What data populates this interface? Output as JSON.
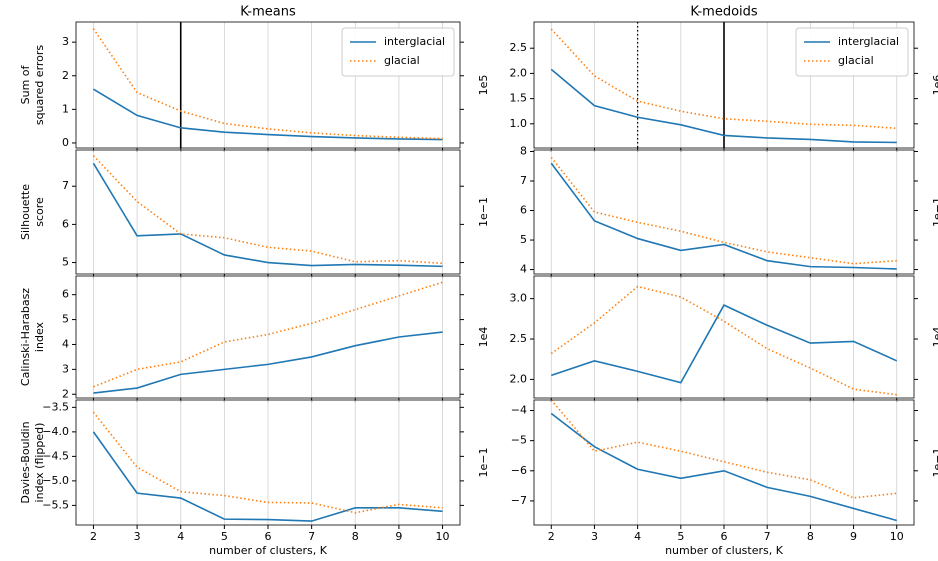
{
  "chart_data": [
    {
      "type": "line",
      "title": "K-means",
      "ylabel": [
        "Sum of",
        "squared errors"
      ],
      "scale_label": "1e5",
      "x": [
        2,
        3,
        4,
        5,
        6,
        7,
        8,
        9,
        10
      ],
      "xlim": [
        1.6,
        10.4
      ],
      "xticks": [
        2,
        3,
        4,
        5,
        6,
        7,
        8,
        9,
        10
      ],
      "ylim": [
        -0.15,
        3.6
      ],
      "yticks": [
        0,
        1,
        2,
        3
      ],
      "grid": true,
      "legend": "upper right",
      "vlines": [
        {
          "x": 4,
          "style": "solid"
        }
      ],
      "series": [
        {
          "name": "interglacial",
          "color": "#1f77b4",
          "style": "solid",
          "values": [
            1.6,
            0.82,
            0.45,
            0.32,
            0.25,
            0.19,
            0.15,
            0.12,
            0.1
          ]
        },
        {
          "name": "glacial",
          "color": "#ff7f0e",
          "style": "dotted",
          "values": [
            3.4,
            1.5,
            0.95,
            0.58,
            0.42,
            0.3,
            0.22,
            0.17,
            0.13
          ]
        }
      ]
    },
    {
      "type": "line",
      "ylabel": [
        "Silhouette",
        "score"
      ],
      "scale_label": "1e−1",
      "x": [
        2,
        3,
        4,
        5,
        6,
        7,
        8,
        9,
        10
      ],
      "xlim": [
        1.6,
        10.4
      ],
      "xticks": [
        2,
        3,
        4,
        5,
        6,
        7,
        8,
        9,
        10
      ],
      "ylim": [
        4.7,
        7.95
      ],
      "yticks": [
        5,
        6,
        7
      ],
      "grid": true,
      "series": [
        {
          "color": "#1f77b4",
          "style": "solid",
          "values": [
            7.6,
            5.7,
            5.75,
            5.2,
            5.0,
            4.92,
            4.95,
            4.93,
            4.9
          ]
        },
        {
          "color": "#ff7f0e",
          "style": "dotted",
          "values": [
            7.8,
            6.6,
            5.75,
            5.65,
            5.4,
            5.3,
            5.02,
            5.05,
            4.98
          ]
        }
      ]
    },
    {
      "type": "line",
      "ylabel": [
        "Calinski-Harabasz",
        "index"
      ],
      "scale_label": "1e4",
      "x": [
        2,
        3,
        4,
        5,
        6,
        7,
        8,
        9,
        10
      ],
      "xlim": [
        1.6,
        10.4
      ],
      "xticks": [
        2,
        3,
        4,
        5,
        6,
        7,
        8,
        9,
        10
      ],
      "ylim": [
        1.85,
        6.75
      ],
      "yticks": [
        2,
        3,
        4,
        5,
        6
      ],
      "grid": true,
      "series": [
        {
          "color": "#1f77b4",
          "style": "solid",
          "values": [
            2.05,
            2.25,
            2.8,
            3.0,
            3.2,
            3.5,
            3.95,
            4.3,
            4.5
          ]
        },
        {
          "color": "#ff7f0e",
          "style": "dotted",
          "values": [
            2.3,
            3.0,
            3.3,
            4.1,
            4.4,
            4.85,
            5.4,
            5.95,
            6.5
          ]
        }
      ]
    },
    {
      "type": "line",
      "ylabel": [
        "Davies-Bouldin",
        "index (flipped)"
      ],
      "scale_label": "1e−1",
      "xlabel": "number of clusters, K",
      "x": [
        2,
        3,
        4,
        5,
        6,
        7,
        8,
        9,
        10
      ],
      "xlim": [
        1.6,
        10.4
      ],
      "xticks": [
        2,
        3,
        4,
        5,
        6,
        7,
        8,
        9,
        10
      ],
      "ylim": [
        -5.9,
        -3.35
      ],
      "yticks": [
        {
          "value": -5.5,
          "label": "−5.5"
        },
        {
          "value": -5,
          "label": "−5.0"
        },
        {
          "value": -4.5,
          "label": "−4.5"
        },
        {
          "value": -4,
          "label": "−4.0"
        },
        {
          "value": -3.5,
          "label": "−3.5"
        }
      ],
      "grid": true,
      "series": [
        {
          "color": "#1f77b4",
          "style": "solid",
          "values": [
            -4.0,
            -5.25,
            -5.35,
            -5.78,
            -5.79,
            -5.82,
            -5.55,
            -5.55,
            -5.62
          ]
        },
        {
          "color": "#ff7f0e",
          "style": "dotted",
          "values": [
            -3.6,
            -4.72,
            -5.22,
            -5.3,
            -5.44,
            -5.45,
            -5.65,
            -5.48,
            -5.55
          ]
        }
      ]
    },
    {
      "type": "line",
      "title": "K-medoids",
      "scale_label": "1e6",
      "x": [
        2,
        3,
        4,
        5,
        6,
        7,
        8,
        9,
        10
      ],
      "xlim": [
        1.6,
        10.4
      ],
      "xticks": [
        2,
        3,
        4,
        5,
        6,
        7,
        8,
        9,
        10
      ],
      "ylim": [
        0.52,
        3.02
      ],
      "yticks": [
        {
          "value": 1,
          "label": "1.0"
        },
        1.5,
        {
          "value": 2,
          "label": "2.0"
        },
        2.5
      ],
      "grid": true,
      "legend": "upper right",
      "vlines": [
        {
          "x": 4,
          "style": "dotted"
        },
        {
          "x": 6,
          "style": "solid"
        }
      ],
      "series": [
        {
          "name": "interglacial",
          "color": "#1f77b4",
          "style": "solid",
          "values": [
            2.08,
            1.36,
            1.13,
            0.98,
            0.77,
            0.72,
            0.69,
            0.64,
            0.63
          ]
        },
        {
          "name": "glacial",
          "color": "#ff7f0e",
          "style": "dotted",
          "values": [
            2.88,
            1.95,
            1.45,
            1.25,
            1.1,
            1.05,
            0.99,
            0.97,
            0.91
          ]
        }
      ]
    },
    {
      "type": "line",
      "scale_label": "1e−1",
      "x": [
        2,
        3,
        4,
        5,
        6,
        7,
        8,
        9,
        10
      ],
      "xlim": [
        1.6,
        10.4
      ],
      "xticks": [
        2,
        3,
        4,
        5,
        6,
        7,
        8,
        9,
        10
      ],
      "ylim": [
        3.85,
        8.05
      ],
      "yticks": [
        4,
        5,
        6,
        7,
        8
      ],
      "grid": true,
      "series": [
        {
          "color": "#1f77b4",
          "style": "solid",
          "values": [
            7.6,
            5.65,
            5.05,
            4.65,
            4.85,
            4.3,
            4.1,
            4.07,
            4.02
          ]
        },
        {
          "color": "#ff7f0e",
          "style": "dotted",
          "values": [
            7.8,
            5.95,
            5.6,
            5.3,
            4.92,
            4.6,
            4.4,
            4.2,
            4.3
          ]
        }
      ]
    },
    {
      "type": "line",
      "scale_label": "1e4",
      "x": [
        2,
        3,
        4,
        5,
        6,
        7,
        8,
        9,
        10
      ],
      "xlim": [
        1.6,
        10.4
      ],
      "xticks": [
        2,
        3,
        4,
        5,
        6,
        7,
        8,
        9,
        10
      ],
      "ylim": [
        1.77,
        3.28
      ],
      "yticks": [
        {
          "value": 2,
          "label": "2.0"
        },
        2.5,
        {
          "value": 3,
          "label": "3.0"
        }
      ],
      "grid": true,
      "series": [
        {
          "color": "#1f77b4",
          "style": "solid",
          "values": [
            2.05,
            2.23,
            2.1,
            1.96,
            2.92,
            2.67,
            2.45,
            2.47,
            2.23
          ]
        },
        {
          "color": "#ff7f0e",
          "style": "dotted",
          "values": [
            2.32,
            2.7,
            3.15,
            3.02,
            2.72,
            2.38,
            2.14,
            1.88,
            1.81
          ]
        }
      ]
    },
    {
      "type": "line",
      "scale_label": "1e−1",
      "xlabel": "number of clusters, K",
      "x": [
        2,
        3,
        4,
        5,
        6,
        7,
        8,
        9,
        10
      ],
      "xlim": [
        1.6,
        10.4
      ],
      "xticks": [
        2,
        3,
        4,
        5,
        6,
        7,
        8,
        9,
        10
      ],
      "ylim": [
        -7.8,
        -3.65
      ],
      "yticks": [
        {
          "value": -7,
          "label": "−7"
        },
        {
          "value": -6,
          "label": "−6"
        },
        {
          "value": -5,
          "label": "−5"
        },
        {
          "value": -4,
          "label": "−4"
        }
      ],
      "grid": true,
      "series": [
        {
          "color": "#1f77b4",
          "style": "solid",
          "values": [
            -4.1,
            -5.2,
            -5.95,
            -6.25,
            -6.0,
            -6.55,
            -6.85,
            -7.25,
            -7.65
          ]
        },
        {
          "color": "#ff7f0e",
          "style": "dotted",
          "values": [
            -3.65,
            -5.35,
            -5.05,
            -5.35,
            -5.7,
            -6.05,
            -6.3,
            -6.9,
            -6.75
          ]
        }
      ]
    }
  ]
}
